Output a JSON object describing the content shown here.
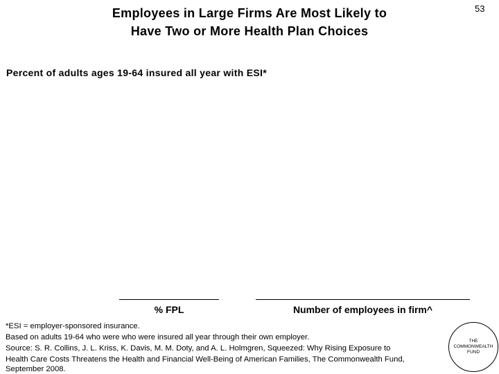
{
  "header": {
    "title_lines": [
      "Employees in Large Firms Are Most Likely to",
      "Have Two or More Health Plan Choices"
    ],
    "page_number": "53"
  },
  "subtitle": "Percent of adults ages 19-64 insured all year with ESI*",
  "groups": [
    "% FPL",
    "Number of employees in firm^"
  ],
  "footnotes": [
    "*ESI = employer-sponsored insurance.",
    "Based on adults 19-64 who were who were insured all year through their own employer.",
    "Source: S. R. Collins, J. L. Kriss, K. Davis, M. M. Doty, and A. L. Holmgren, Squeezed: Why Rising Exposure to",
    "Health Care Costs Threatens the Health and Financial Well-Being of American Families, The Commonwealth Fund,",
    "September 2008."
  ],
  "logo": [
    "THE",
    "COMMONWEALTH",
    "FUND"
  ]
}
